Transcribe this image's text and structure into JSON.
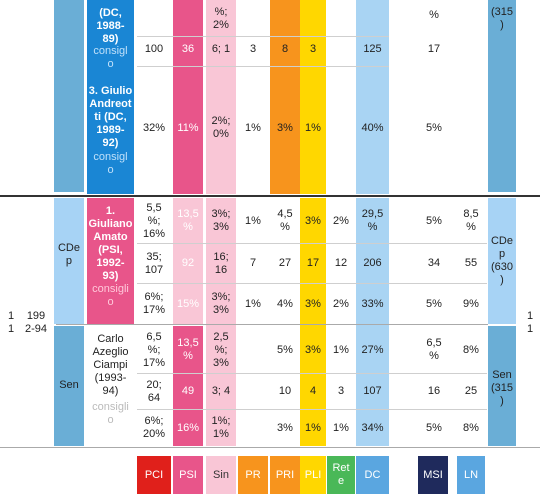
{
  "colors": {
    "pci": "#e0201b",
    "psi": "#e8558a",
    "sin": "#f9c6d6",
    "pr": "#f7941d",
    "pri": "#f7941d",
    "pli": "#ffd700",
    "rete": "#4ab858",
    "dc": "#a7d3f5",
    "msi": "#1f2a5c",
    "ln": "#5aa6e0",
    "govt_dark": "#1a86d4",
    "steel": "#6aaed6"
  },
  "top": {
    "govt_a_title": "(DC,\n1988-\n89)",
    "govt_a_sub": "consigl\no",
    "govt_b_title": "3. Giulio\nAndreot\nti (DC,\n1989-\n92)",
    "govt_b_sub": "consigl\no",
    "row0": {
      "sin": "%;\n2%",
      "msi": "%",
      "right": "(315\n)"
    },
    "row1": {
      "pci": "100",
      "psi": "36",
      "sin": "6; 1",
      "pr": "3",
      "pri": "8",
      "pli": "3",
      "dc": "125",
      "msi": "17"
    },
    "row2": {
      "pci": "32%",
      "psi": "11%",
      "sin": "2%;\n0%",
      "pr": "1%",
      "pri": "3%",
      "pli": "1%",
      "dc": "40%",
      "msi": "5%"
    }
  },
  "bottom": {
    "legislature_num": "1\n1",
    "legislature_years": "199\n2-94",
    "legislature_right": "1\n1",
    "cdep_label": "CDe\np",
    "sen_label": "Sen",
    "cdep_right": "CDe\np\n(630\n)",
    "sen_right": "Sen\n(315\n)",
    "amato_title": "1.\nGiuliano\nAmato\n(PSI,\n1992-\n93)",
    "amato_sub": "consigli\no",
    "ciampi_title": "Carlo\nAzeglio\nCiampi\n(1993-\n94)",
    "ciampi_sub": "consigli\no",
    "cdep_rows": [
      {
        "pci": "5,5\n%;\n16%",
        "psi": "13,5\n%",
        "sin": "3%;\n3%",
        "pr": "1%",
        "pri": "4,5\n%",
        "pli": "3%",
        "rete": "2%",
        "dc": "29,5\n%",
        "msi": "5%",
        "ln": "8,5\n%"
      },
      {
        "pci": "35;\n107",
        "psi": "92",
        "sin": "16;\n16",
        "pr": "7",
        "pri": "27",
        "pli": "17",
        "rete": "12",
        "dc": "206",
        "msi": "34",
        "ln": "55"
      },
      {
        "pci": "6%;\n17%",
        "psi": "15%",
        "sin": "3%;\n3%",
        "pr": "1%",
        "pri": "4%",
        "pli": "3%",
        "rete": "2%",
        "dc": "33%",
        "msi": "5%",
        "ln": "9%"
      }
    ],
    "sen_rows": [
      {
        "pci": "6,5\n%;\n17%",
        "psi": "13,5\n%",
        "sin": "2,5\n%;\n3%",
        "pr": "",
        "pri": "5%",
        "pli": "3%",
        "rete": "1%",
        "dc": "27%",
        "msi": "6,5\n%",
        "ln": "8%"
      },
      {
        "pci": "20;\n64",
        "psi": "49",
        "sin": "3; 4",
        "pr": "",
        "pri": "10",
        "pli": "4",
        "rete": "3",
        "dc": "107",
        "msi": "16",
        "ln": "25"
      },
      {
        "pci": "6%;\n20%",
        "psi": "16%",
        "sin": "1%;\n1%",
        "pr": "",
        "pri": "3%",
        "pli": "1%",
        "rete": "1%",
        "dc": "34%",
        "msi": "5%",
        "ln": "8%"
      }
    ]
  },
  "legend": {
    "pci": "PCI",
    "psi": "PSI",
    "sin": "Sin",
    "pr": "PR",
    "pri": "PRI",
    "pli": "PLI",
    "rete": "Ret\ne",
    "dc": "DC",
    "msi": "MSI",
    "ln": "LN"
  }
}
